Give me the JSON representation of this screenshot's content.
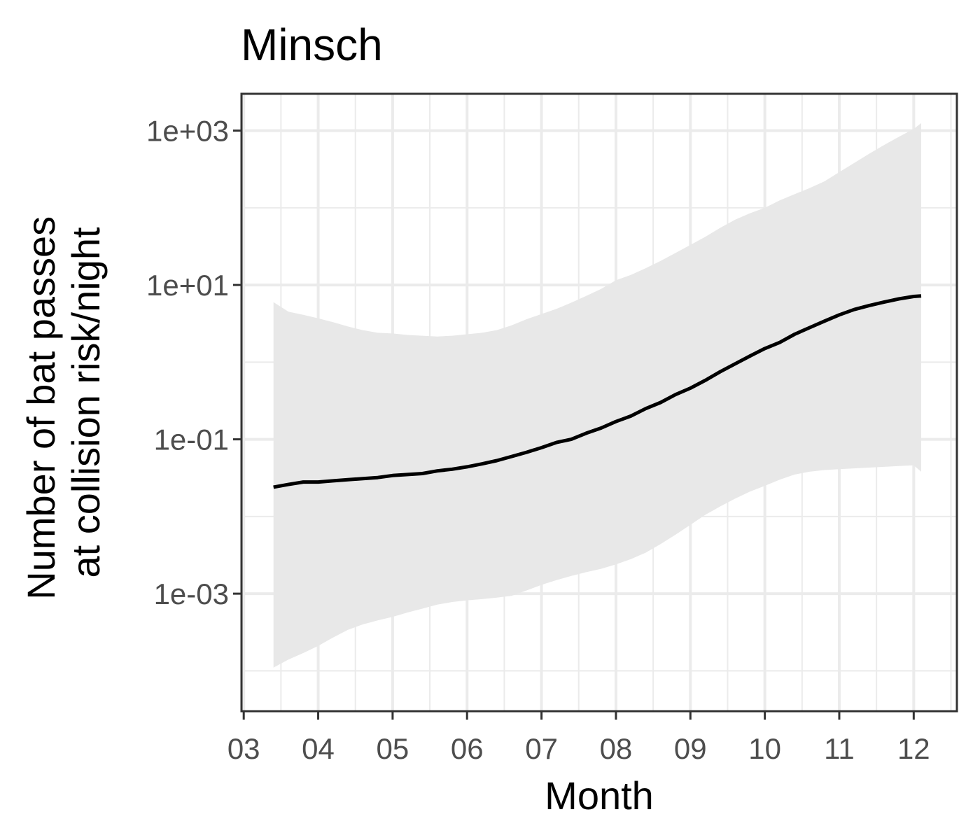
{
  "colors": {
    "background": "#ffffff",
    "panel_border": "#333333",
    "grid": "#ebebeb",
    "ribbon": "#e8e8e8",
    "line": "#000000",
    "tick_label": "#4d4d4d"
  },
  "chart_data": {
    "type": "line",
    "title": "Minsch",
    "xlabel": "Month",
    "ylabel_lines": [
      "Number of bat passes",
      "at collision risk/night"
    ],
    "x_unit": "month",
    "xlim": [
      2.97,
      12.58
    ],
    "x_ticks": [
      3,
      4,
      5,
      6,
      7,
      8,
      9,
      10,
      11,
      12
    ],
    "x_tick_labels": [
      "03",
      "04",
      "05",
      "06",
      "07",
      "08",
      "09",
      "10",
      "11",
      "12"
    ],
    "y_scale": "log10",
    "ylim": [
      3e-05,
      3000
    ],
    "y_ticks": [
      0.001,
      0.1,
      10,
      1000
    ],
    "y_tick_labels": [
      "1e-03",
      "1e-01",
      "1e+01",
      "1e+03"
    ],
    "grid": true,
    "legend": "none",
    "series": [
      {
        "values_x": [
          3.4,
          3.6,
          3.8,
          4.0,
          4.2,
          4.4,
          4.6,
          4.8,
          5.0,
          5.2,
          5.4,
          5.6,
          5.8,
          6.0,
          6.2,
          6.4,
          6.6,
          6.8,
          7.0,
          7.2,
          7.4,
          7.6,
          7.8,
          8.0,
          8.2,
          8.4,
          8.6,
          8.8,
          9.0,
          9.2,
          9.4,
          9.6,
          9.8,
          10.0,
          10.2,
          10.4,
          10.6,
          10.8,
          11.0,
          11.2,
          11.4,
          11.6,
          11.8,
          12.0,
          12.1
        ],
        "values_y": [
          0.024,
          0.026,
          0.028,
          0.028,
          0.029,
          0.03,
          0.031,
          0.032,
          0.034,
          0.035,
          0.036,
          0.039,
          0.041,
          0.044,
          0.048,
          0.053,
          0.06,
          0.068,
          0.078,
          0.091,
          0.1,
          0.12,
          0.14,
          0.17,
          0.2,
          0.25,
          0.3,
          0.38,
          0.46,
          0.58,
          0.75,
          0.95,
          1.2,
          1.5,
          1.8,
          2.3,
          2.8,
          3.4,
          4.1,
          4.8,
          5.4,
          6.0,
          6.6,
          7.1,
          7.2
        ],
        "lower": [
          0.00011,
          0.00014,
          0.00017,
          0.00021,
          0.00027,
          0.00034,
          0.0004,
          0.00045,
          0.0005,
          0.00057,
          0.00064,
          0.00072,
          0.00078,
          0.00082,
          0.00085,
          0.00089,
          0.00094,
          0.0011,
          0.0013,
          0.0015,
          0.0017,
          0.0019,
          0.0021,
          0.0024,
          0.0028,
          0.0034,
          0.0044,
          0.0058,
          0.0078,
          0.0105,
          0.0135,
          0.017,
          0.021,
          0.025,
          0.03,
          0.035,
          0.038,
          0.04,
          0.041,
          0.042,
          0.043,
          0.044,
          0.045,
          0.046,
          0.038
        ],
        "upper": [
          6.0,
          4.5,
          4.1,
          3.7,
          3.3,
          2.9,
          2.6,
          2.4,
          2.35,
          2.25,
          2.2,
          2.15,
          2.2,
          2.3,
          2.4,
          2.6,
          3.0,
          3.6,
          4.2,
          4.9,
          5.9,
          7.2,
          8.9,
          11.5,
          13.5,
          16.5,
          20.5,
          26.0,
          33.0,
          42.0,
          55.0,
          70.0,
          85.0,
          100.0,
          125.0,
          150.0,
          180.0,
          220.0,
          290.0,
          380.0,
          500.0,
          650.0,
          830.0,
          1050.0,
          1250.0
        ]
      }
    ]
  }
}
